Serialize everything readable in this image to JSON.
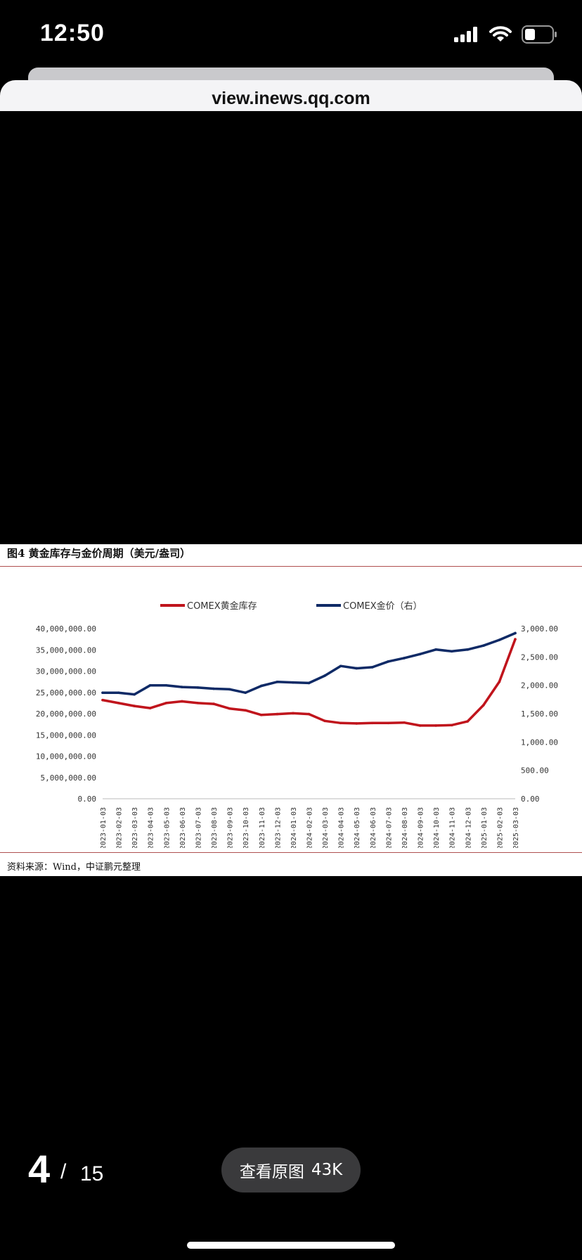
{
  "status_bar": {
    "time": "12:50"
  },
  "browser": {
    "url": "view.inews.qq.com"
  },
  "figure": {
    "title": "图4  黄金库存与金价周期（美元/盎司）",
    "source": "资料来源：Wind，中证鹏元整理"
  },
  "chart_data": {
    "type": "line",
    "x": [
      "2023-01-03",
      "2023-02-03",
      "2023-03-03",
      "2023-04-03",
      "2023-05-03",
      "2023-06-03",
      "2023-07-03",
      "2023-08-03",
      "2023-09-03",
      "2023-10-03",
      "2023-11-03",
      "2023-12-03",
      "2024-01-03",
      "2024-02-03",
      "2024-03-03",
      "2024-04-03",
      "2024-05-03",
      "2024-06-03",
      "2024-07-03",
      "2024-08-03",
      "2024-09-03",
      "2024-10-03",
      "2024-11-03",
      "2024-12-03",
      "2025-01-03",
      "2025-02-03",
      "2025-03-03"
    ],
    "series": [
      {
        "name": "COMEX黄金库存",
        "axis": "left",
        "color": "#c0141c",
        "values": [
          23200000,
          22500000,
          21800000,
          21300000,
          22500000,
          22900000,
          22500000,
          22300000,
          21200000,
          20800000,
          19700000,
          19900000,
          20100000,
          19900000,
          18300000,
          17800000,
          17700000,
          17800000,
          17800000,
          17900000,
          17200000,
          17200000,
          17300000,
          18200000,
          22000000,
          27500000,
          37500000
        ]
      },
      {
        "name": "COMEX金价（右）",
        "axis": "right",
        "color": "#0f2a66",
        "values": [
          1870,
          1870,
          1840,
          2000,
          2000,
          1970,
          1960,
          1940,
          1930,
          1870,
          1990,
          2060,
          2050,
          2040,
          2170,
          2340,
          2300,
          2320,
          2420,
          2480,
          2550,
          2630,
          2600,
          2630,
          2700,
          2800,
          2920
        ]
      }
    ],
    "y_left": {
      "ylim": [
        0,
        40000000
      ],
      "ticks": [
        "0.00",
        "5,000,000.00",
        "10,000,000.00",
        "15,000,000.00",
        "20,000,000.00",
        "25,000,000.00",
        "30,000,000.00",
        "35,000,000.00",
        "40,000,000.00"
      ]
    },
    "y_right": {
      "ylim": [
        0,
        3000
      ],
      "ticks": [
        "0.00",
        "500.00",
        "1,000.00",
        "1,500.00",
        "2,000.00",
        "2,500.00",
        "3,000.00"
      ]
    },
    "x_ticks": [
      "2023-01-03",
      "2023-02-03",
      "2023-03-03",
      "2023-04-03",
      "2023-05-03",
      "2023-06-03",
      "2023-07-03",
      "2023-08-03",
      "2023-09-03",
      "2023-10-03",
      "2023-11-03",
      "2023-12-03",
      "2024-01-03",
      "2024-02-03",
      "2024-03-03",
      "2024-04-03",
      "2024-05-03",
      "2024-06-03",
      "2024-07-03",
      "2024-08-03",
      "2024-09-03",
      "2024-10-03",
      "2024-11-03",
      "2024-12-03",
      "2025-01-03",
      "2025-02-03",
      "2025-03-03"
    ],
    "legend_position": "top-center",
    "grid": false
  },
  "pager": {
    "current": "4",
    "separator": "/",
    "total": "15"
  },
  "actions": {
    "view_original_label": "查看原图",
    "view_original_size": "43K"
  }
}
